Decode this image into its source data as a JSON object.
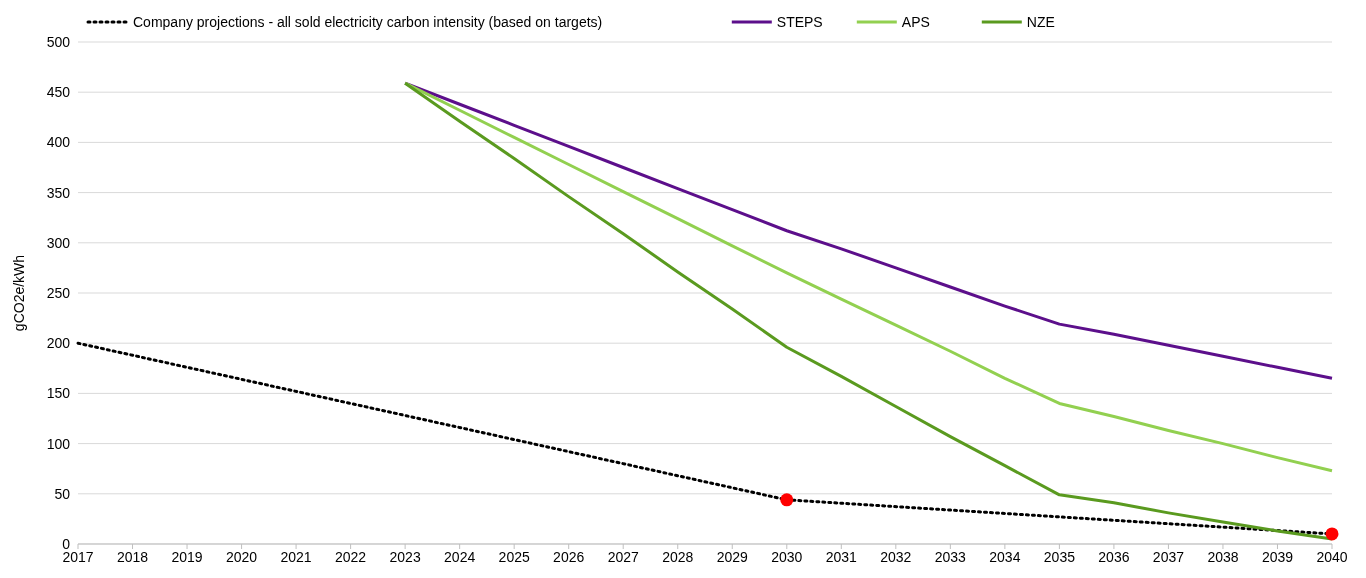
{
  "chart_data": {
    "type": "line",
    "ylabel": "gCO2e/kWh",
    "xlim": [
      2017,
      2040
    ],
    "xticks": [
      2017,
      2018,
      2019,
      2020,
      2021,
      2022,
      2023,
      2024,
      2025,
      2026,
      2027,
      2028,
      2029,
      2030,
      2031,
      2032,
      2033,
      2034,
      2035,
      2036,
      2037,
      2038,
      2039,
      2040
    ],
    "ylim": [
      0,
      500
    ],
    "yticks": [
      0,
      50,
      100,
      150,
      200,
      250,
      300,
      350,
      400,
      450,
      500
    ],
    "grid": "y",
    "legend": "top",
    "series": [
      {
        "name": "Company projections - all sold electricity carbon intensity (based on targets)",
        "color": "#000000",
        "line_style": "dotted",
        "x": [
          2017,
          2030,
          2040
        ],
        "values": [
          200,
          44,
          10
        ]
      },
      {
        "name": "STEPS",
        "color": "#5c0f8b",
        "line_style": "solid",
        "x": [
          2023,
          2024,
          2025,
          2026,
          2027,
          2028,
          2029,
          2030,
          2031,
          2032,
          2033,
          2034,
          2035,
          2036,
          2037,
          2038,
          2039,
          2040
        ],
        "values": [
          459,
          438,
          417,
          396,
          375,
          354,
          333,
          312,
          294,
          275,
          256,
          237,
          219,
          209,
          198,
          187,
          176,
          165
        ]
      },
      {
        "name": "APS",
        "color": "#92d050",
        "line_style": "solid",
        "x": [
          2023,
          2024,
          2025,
          2026,
          2027,
          2028,
          2029,
          2030,
          2031,
          2032,
          2033,
          2034,
          2035,
          2036,
          2037,
          2038,
          2039,
          2040
        ],
        "values": [
          459,
          432,
          405,
          378,
          351,
          324,
          297,
          270,
          244,
          218,
          192,
          165,
          140,
          127,
          113,
          100,
          86,
          73
        ]
      },
      {
        "name": "NZE",
        "color": "#5a9a1f",
        "line_style": "solid",
        "x": [
          2023,
          2024,
          2025,
          2026,
          2027,
          2028,
          2029,
          2030,
          2031,
          2032,
          2033,
          2034,
          2035,
          2036,
          2037,
          2038,
          2039,
          2040
        ],
        "values": [
          459,
          421,
          384,
          346,
          309,
          271,
          234,
          196,
          167,
          137,
          107,
          78,
          49,
          41,
          31,
          22,
          13,
          5
        ]
      },
      {
        "type": "scatter",
        "color": "#ff0000",
        "marker": "circle",
        "x": [
          2030,
          2040
        ],
        "values": [
          44,
          10
        ]
      }
    ]
  }
}
